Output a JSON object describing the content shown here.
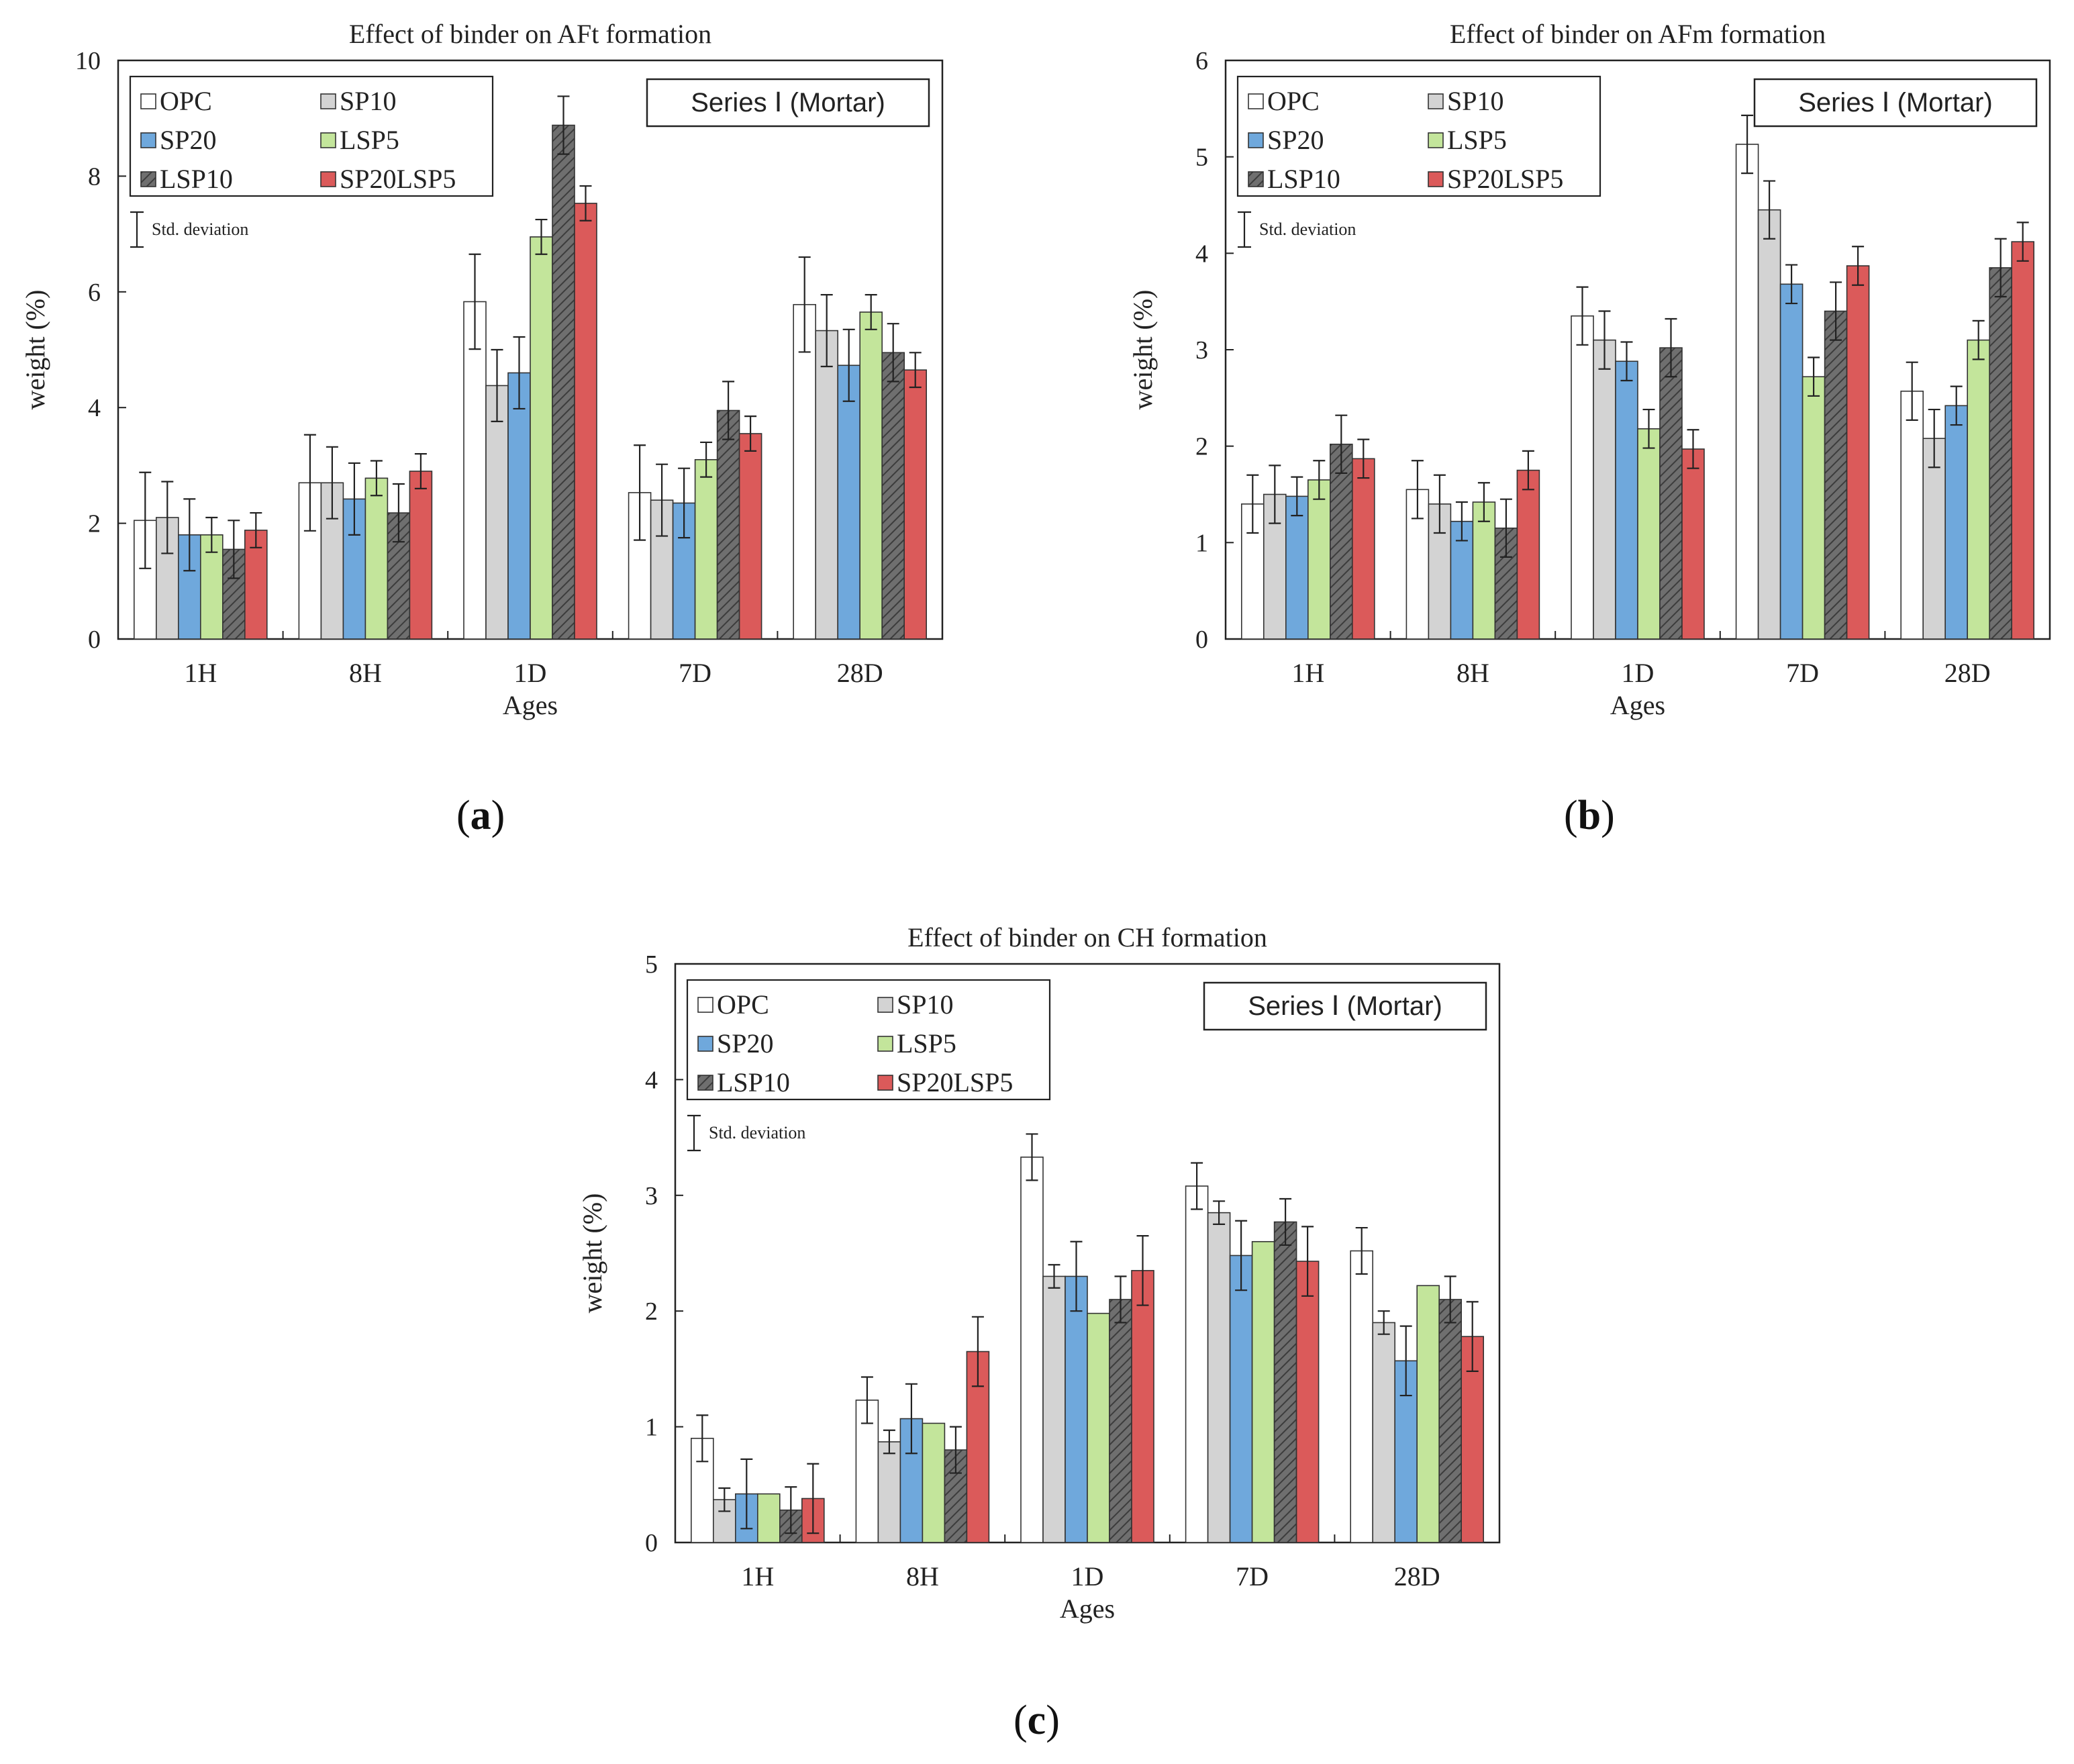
{
  "colors": {
    "OPC": "#ffffff",
    "SP10": "#d3d3d3",
    "SP20": "#6fa8dc",
    "LSP5": "#c3e59b",
    "LSP10": "#707070",
    "SP20LSP5": "#db5a5a"
  },
  "std_legend_text": "Std. deviation",
  "panel_labels": {
    "a": "a",
    "b": "b",
    "c": "c"
  },
  "chart_data": [
    {
      "type": "bar",
      "id": "a",
      "title": "Effect of binder on AFt formation",
      "series_box": "Series Ⅰ (Mortar)",
      "xlabel": "Ages",
      "ylabel": "weight (%)",
      "ylim": [
        0,
        10
      ],
      "yticks": [
        0,
        2,
        4,
        6,
        8,
        10
      ],
      "categories": [
        "1H",
        "8H",
        "1D",
        "7D",
        "28D"
      ],
      "series": [
        {
          "name": "OPC",
          "values": [
            2.05,
            2.7,
            5.83,
            2.53,
            5.78
          ],
          "errors": [
            0.83,
            0.83,
            0.82,
            0.82,
            0.82
          ]
        },
        {
          "name": "SP10",
          "values": [
            2.1,
            2.7,
            4.38,
            2.4,
            5.33
          ],
          "errors": [
            0.62,
            0.62,
            0.62,
            0.62,
            0.62
          ]
        },
        {
          "name": "SP20",
          "values": [
            1.8,
            2.42,
            4.6,
            2.35,
            4.73
          ],
          "errors": [
            0.62,
            0.62,
            0.62,
            0.6,
            0.62
          ]
        },
        {
          "name": "LSP5",
          "values": [
            1.8,
            2.78,
            6.95,
            3.1,
            5.65
          ],
          "errors": [
            0.3,
            0.3,
            0.3,
            0.3,
            0.3
          ]
        },
        {
          "name": "LSP10",
          "values": [
            1.55,
            2.18,
            8.88,
            3.95,
            4.95
          ],
          "errors": [
            0.5,
            0.5,
            0.5,
            0.5,
            0.5
          ]
        },
        {
          "name": "SP20LSP5",
          "values": [
            1.88,
            2.9,
            7.53,
            3.55,
            4.65
          ],
          "errors": [
            0.3,
            0.3,
            0.3,
            0.3,
            0.3
          ]
        }
      ]
    },
    {
      "type": "bar",
      "id": "b",
      "title": "Effect of binder on AFm formation",
      "series_box": "Series Ⅰ (Mortar)",
      "xlabel": "Ages",
      "ylabel": "weight (%)",
      "ylim": [
        0,
        6
      ],
      "yticks": [
        0,
        1,
        2,
        3,
        4,
        5,
        6
      ],
      "categories": [
        "1H",
        "8H",
        "1D",
        "7D",
        "28D"
      ],
      "series": [
        {
          "name": "OPC",
          "values": [
            1.4,
            1.55,
            3.35,
            5.13,
            2.57
          ],
          "errors": [
            0.3,
            0.3,
            0.3,
            0.3,
            0.3
          ]
        },
        {
          "name": "SP10",
          "values": [
            1.5,
            1.4,
            3.1,
            4.45,
            2.08
          ],
          "errors": [
            0.3,
            0.3,
            0.3,
            0.3,
            0.3
          ]
        },
        {
          "name": "SP20",
          "values": [
            1.48,
            1.22,
            2.88,
            3.68,
            2.42
          ],
          "errors": [
            0.2,
            0.2,
            0.2,
            0.2,
            0.2
          ]
        },
        {
          "name": "LSP5",
          "values": [
            1.65,
            1.42,
            2.18,
            2.72,
            3.1
          ],
          "errors": [
            0.2,
            0.2,
            0.2,
            0.2,
            0.2
          ]
        },
        {
          "name": "LSP10",
          "values": [
            2.02,
            1.15,
            3.02,
            3.4,
            3.85
          ],
          "errors": [
            0.3,
            0.3,
            0.3,
            0.3,
            0.3
          ]
        },
        {
          "name": "SP20LSP5",
          "values": [
            1.87,
            1.75,
            1.97,
            3.87,
            4.12
          ],
          "errors": [
            0.2,
            0.2,
            0.2,
            0.2,
            0.2
          ]
        }
      ]
    },
    {
      "type": "bar",
      "id": "c",
      "title": "Effect of binder on CH formation",
      "series_box": "Series Ⅰ (Mortar)",
      "xlabel": "Ages",
      "ylabel": "weight (%)",
      "ylim": [
        0,
        5
      ],
      "yticks": [
        0,
        1,
        2,
        3,
        4,
        5
      ],
      "categories": [
        "1H",
        "8H",
        "1D",
        "7D",
        "28D"
      ],
      "series": [
        {
          "name": "OPC",
          "values": [
            0.9,
            1.23,
            3.33,
            3.08,
            2.52
          ],
          "errors": [
            0.2,
            0.2,
            0.2,
            0.2,
            0.2
          ]
        },
        {
          "name": "SP10",
          "values": [
            0.37,
            0.87,
            2.3,
            2.85,
            1.9
          ],
          "errors": [
            0.1,
            0.1,
            0.1,
            0.1,
            0.1
          ]
        },
        {
          "name": "SP20",
          "values": [
            0.42,
            1.07,
            2.3,
            2.48,
            1.57
          ],
          "errors": [
            0.3,
            0.3,
            0.3,
            0.3,
            0.3
          ]
        },
        {
          "name": "LSP5",
          "values": [
            0.42,
            1.03,
            1.98,
            2.6,
            2.22
          ],
          "errors": [
            0,
            0,
            0,
            0,
            0
          ]
        },
        {
          "name": "LSP10",
          "values": [
            0.28,
            0.8,
            2.1,
            2.77,
            2.1
          ],
          "errors": [
            0.2,
            0.2,
            0.2,
            0.2,
            0.2
          ]
        },
        {
          "name": "SP20LSP5",
          "values": [
            0.38,
            1.65,
            2.35,
            2.43,
            1.78
          ],
          "errors": [
            0.3,
            0.3,
            0.3,
            0.3,
            0.3
          ]
        }
      ]
    }
  ]
}
